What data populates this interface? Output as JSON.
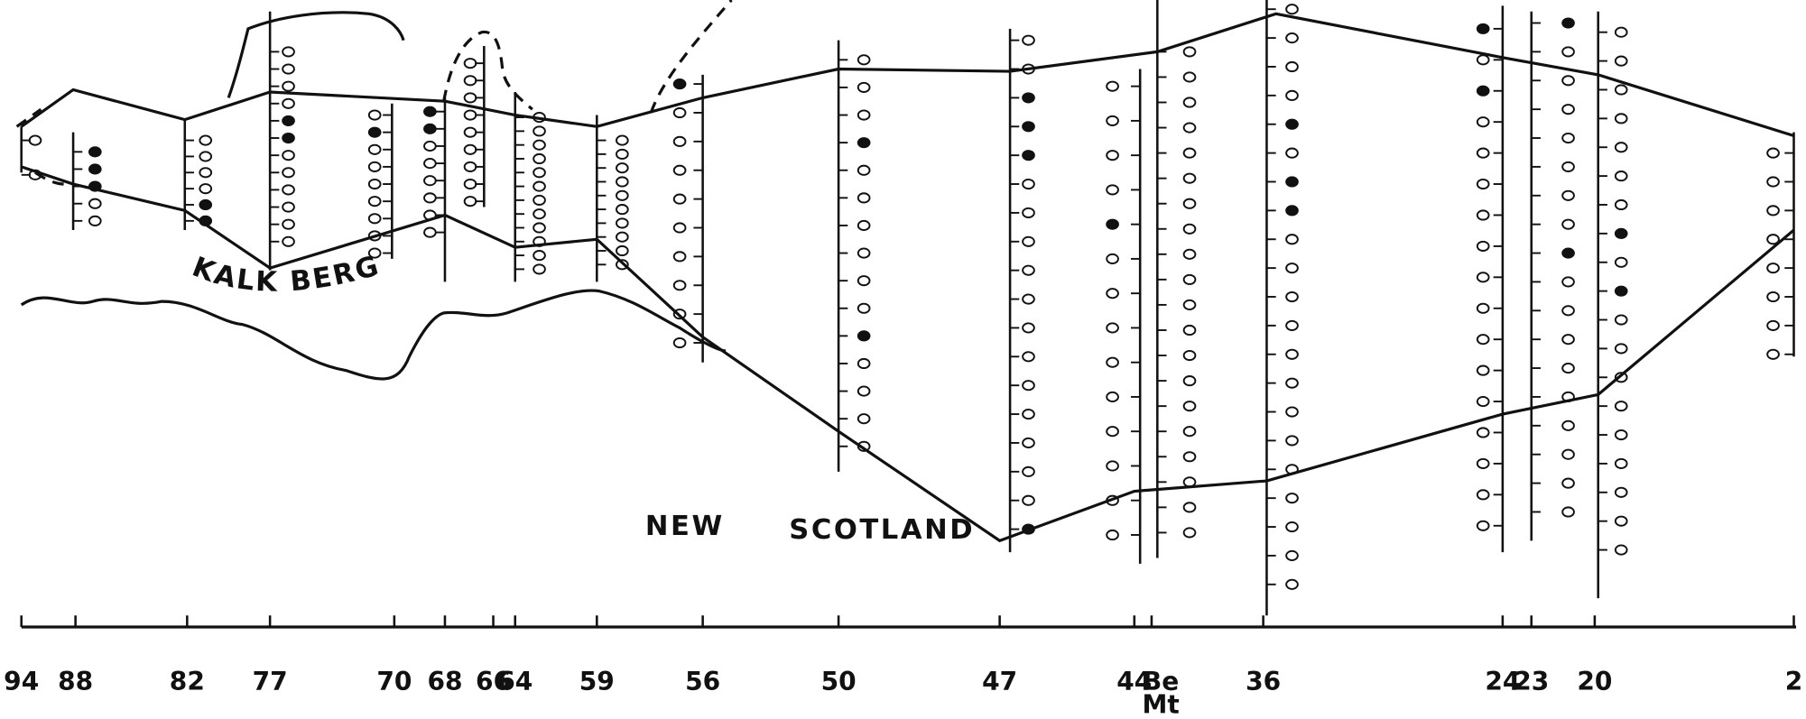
{
  "diagram": {
    "formations": {
      "upper": "KALK BERG",
      "lower_1": "NEW",
      "lower_2": "SCOTLAND"
    },
    "sections": [
      "94",
      "88",
      "82",
      "77",
      "70",
      "68",
      "66",
      "64",
      "59",
      "56",
      "50",
      "47",
      "44",
      {
        "top": "Be",
        "bottom": "Mt"
      },
      "36",
      "24",
      "23",
      "20",
      "2"
    ]
  }
}
